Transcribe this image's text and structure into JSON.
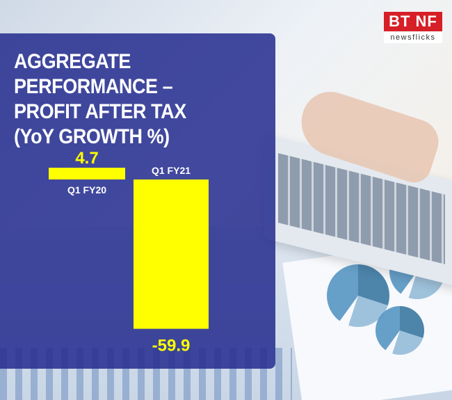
{
  "logo": {
    "text": "BT NF",
    "sub": "newsflicks"
  },
  "chart_data": {
    "type": "bar",
    "title": "AGGREGATE PERFORMANCE –\nPROFIT AFTER TAX\n(YoY GROWTH %)",
    "categories": [
      "Q1 FY20",
      "Q1 FY21"
    ],
    "values": [
      4.7,
      -59.9
    ],
    "data_labels": [
      "4.7",
      "-59.9"
    ],
    "colors": {
      "bar": "#ffff00",
      "panel": "#242c8e"
    }
  }
}
